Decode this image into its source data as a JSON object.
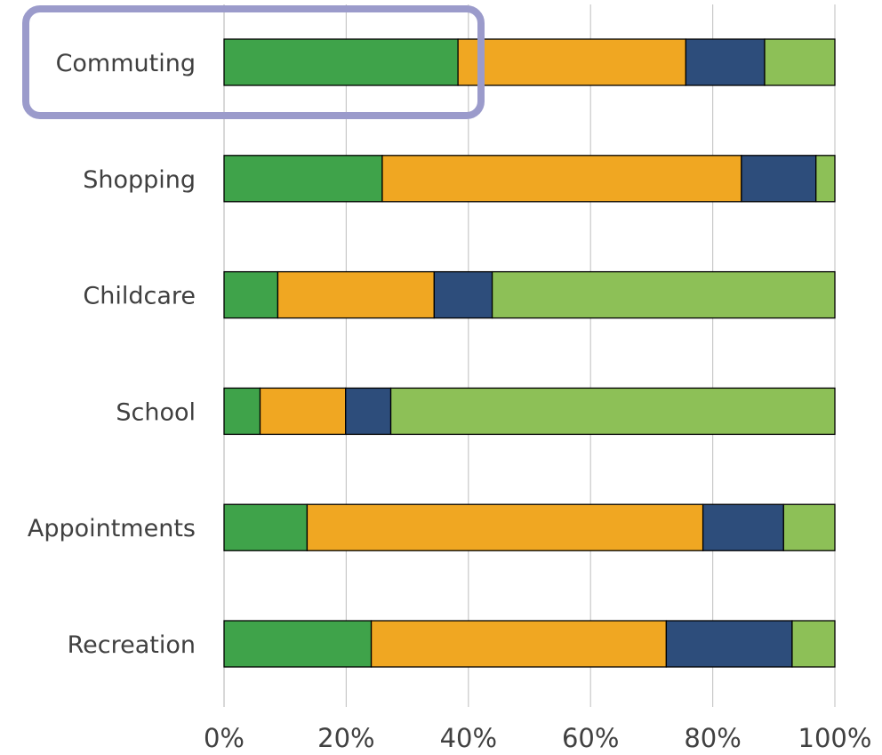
{
  "chart_data": {
    "type": "bar",
    "orientation": "horizontal",
    "stacked": "percent",
    "categories": [
      "Commuting",
      "Shopping",
      "Childcare",
      "School",
      "Appointments",
      "Recreation"
    ],
    "series": [
      {
        "color": "#3fa34a",
        "values": [
          38.3,
          25.9,
          8.8,
          5.9,
          13.6,
          24.1
        ]
      },
      {
        "color": "#f0a722",
        "values": [
          37.3,
          58.8,
          25.6,
          14.0,
          64.8,
          48.3
        ]
      },
      {
        "color": "#2d4d7b",
        "values": [
          12.9,
          12.2,
          9.5,
          7.4,
          13.2,
          20.6
        ]
      },
      {
        "color": "#8dc057",
        "values": [
          11.5,
          3.1,
          56.1,
          72.7,
          8.4,
          7.0
        ]
      }
    ],
    "xlim": [
      0,
      100
    ],
    "xticks": [
      "0%",
      "20%",
      "40%",
      "60%",
      "80%",
      "100%"
    ],
    "grid": "vertical",
    "legend": "none",
    "highlight": {
      "category": "Commuting",
      "color": "#9b9bcb"
    }
  }
}
